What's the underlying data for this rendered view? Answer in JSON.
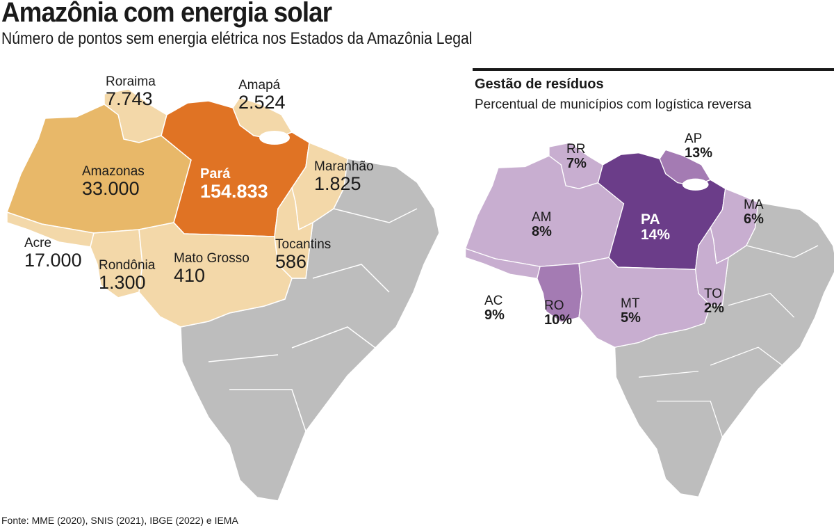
{
  "title": "Amazônia com energia solar",
  "subtitle": "Número de pontos sem energia elétrica nos Estados da Amazônia Legal",
  "colors": {
    "orange": "#e07324",
    "amber": "#e8b869",
    "beige": "#f3d8a9",
    "gray": "#bdbdbd",
    "lavender": "#c8aed0",
    "purple_mid": "#a47bb3",
    "purple_dark": "#6b3d89"
  },
  "left_map": {
    "states": [
      {
        "id": "RR",
        "name": "Roraima",
        "value": "7.743",
        "color": "#f3d8a9"
      },
      {
        "id": "AP",
        "name": "Amapá",
        "value": "2.524",
        "color": "#f3d8a9"
      },
      {
        "id": "AM",
        "name": "Amazonas",
        "value": "33.000",
        "color": "#e8b869"
      },
      {
        "id": "PA",
        "name": "Pará",
        "value": "154.833",
        "color": "#e07324"
      },
      {
        "id": "MA",
        "name": "Maranhão",
        "value": "1.825",
        "color": "#f3d8a9"
      },
      {
        "id": "AC",
        "name": "Acre",
        "value": "17.000",
        "color": "#f3d8a9"
      },
      {
        "id": "RO",
        "name": "Rondônia",
        "value": "1.300",
        "color": "#f3d8a9"
      },
      {
        "id": "MT",
        "name": "Mato Grosso",
        "value": "410",
        "color": "#f3d8a9"
      },
      {
        "id": "TO",
        "name": "Tocantins",
        "value": "586",
        "color": "#f3d8a9"
      }
    ]
  },
  "right_map": {
    "title": "Gestão de resíduos",
    "subtitle": "Percentual de municípios com logística reversa",
    "states": [
      {
        "id": "RR",
        "name": "RR",
        "value": "7%",
        "color": "#c8aed0"
      },
      {
        "id": "AP",
        "name": "AP",
        "value": "13%",
        "color": "#a47bb3"
      },
      {
        "id": "AM",
        "name": "AM",
        "value": "8%",
        "color": "#c8aed0"
      },
      {
        "id": "PA",
        "name": "PA",
        "value": "14%",
        "color": "#6b3d89"
      },
      {
        "id": "MA",
        "name": "MA",
        "value": "6%",
        "color": "#c8aed0"
      },
      {
        "id": "AC",
        "name": "AC",
        "value": "9%",
        "color": "#c8aed0"
      },
      {
        "id": "RO",
        "name": "RO",
        "value": "10%",
        "color": "#a47bb3"
      },
      {
        "id": "MT",
        "name": "MT",
        "value": "5%",
        "color": "#c8aed0"
      },
      {
        "id": "TO",
        "name": "TO",
        "value": "2%",
        "color": "#c8aed0"
      }
    ]
  },
  "source": "Fonte: MME (2020), SNIS (2021), IBGE (2022) e IEMA"
}
